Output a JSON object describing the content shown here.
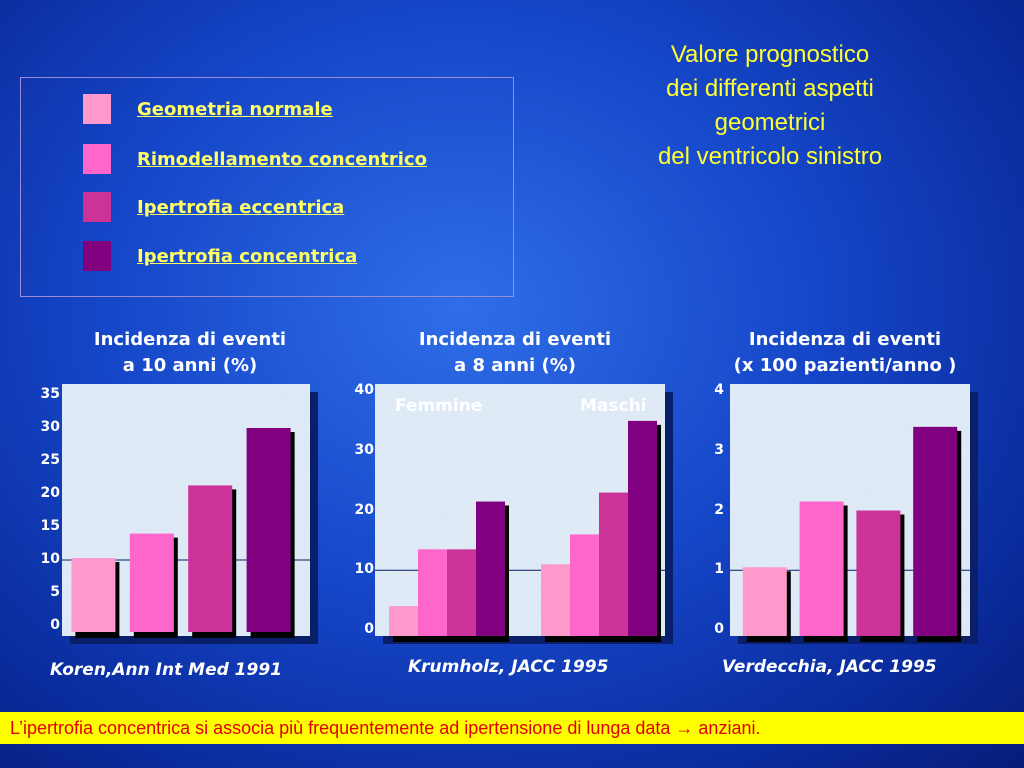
{
  "title_lines": [
    "Valore prognostico",
    "dei differenti aspetti",
    "geometrici",
    "del ventricolo sinistro"
  ],
  "legend": [
    {
      "label": "Geometria normale",
      "color": "#ff99cc"
    },
    {
      "label": "Rimodellamento concentrico",
      "color": "#ff66cc"
    },
    {
      "label": "Ipertrofia  eccentrica",
      "color": "#cc3399"
    },
    {
      "label": "Ipertrofia  concentrica",
      "color": "#800080"
    }
  ],
  "footer": "L’ipertrofia concentrica si associa più frequentemente ad ipertensione di lunga data → anziani.",
  "chart_data": [
    {
      "type": "bar",
      "title_lines": [
        "Incidenza di eventi",
        "a 10 anni (%)"
      ],
      "ylim": [
        0,
        35
      ],
      "yticks": [
        0,
        5,
        10,
        15,
        20,
        25,
        30,
        35
      ],
      "reference_line": 10,
      "categories": [
        "Geometria normale",
        "Rimodellamento concentrico",
        "Ipertrofia  eccentrica",
        "Ipertrofia  concentrica"
      ],
      "values": [
        10.3,
        14,
        21.3,
        30
      ],
      "citation": "Koren,Ann Int Med 1991"
    },
    {
      "type": "bar",
      "title_lines": [
        "Incidenza di eventi",
        "a 8 anni (%)"
      ],
      "ylim": [
        0,
        40
      ],
      "yticks": [
        0,
        10,
        20,
        30,
        40
      ],
      "reference_line": 10,
      "groups": [
        "Femmine",
        "Maschi"
      ],
      "series": [
        {
          "name": "Geometria normale",
          "values": [
            4,
            11
          ]
        },
        {
          "name": "Rimodellamento concentrico",
          "values": [
            13.5,
            16
          ]
        },
        {
          "name": "Ipertrofia  eccentrica",
          "values": [
            13.5,
            23
          ]
        },
        {
          "name": "Ipertrofia  concentrica",
          "values": [
            21.5,
            35
          ]
        }
      ],
      "citation": "Krumholz, JACC 1995"
    },
    {
      "type": "bar",
      "title_lines": [
        "Incidenza di eventi",
        "(x 100 pazienti/anno )"
      ],
      "ylim": [
        0,
        4
      ],
      "yticks": [
        0,
        1,
        2,
        3,
        4
      ],
      "reference_line": 1,
      "categories": [
        "Geometria normale",
        "Rimodellamento concentrico",
        "Ipertrofia  eccentrica",
        "Ipertrofia  concentrica"
      ],
      "values": [
        1.05,
        2.15,
        2.0,
        3.4
      ],
      "citation": "Verdecchia, JACC 1995"
    }
  ]
}
